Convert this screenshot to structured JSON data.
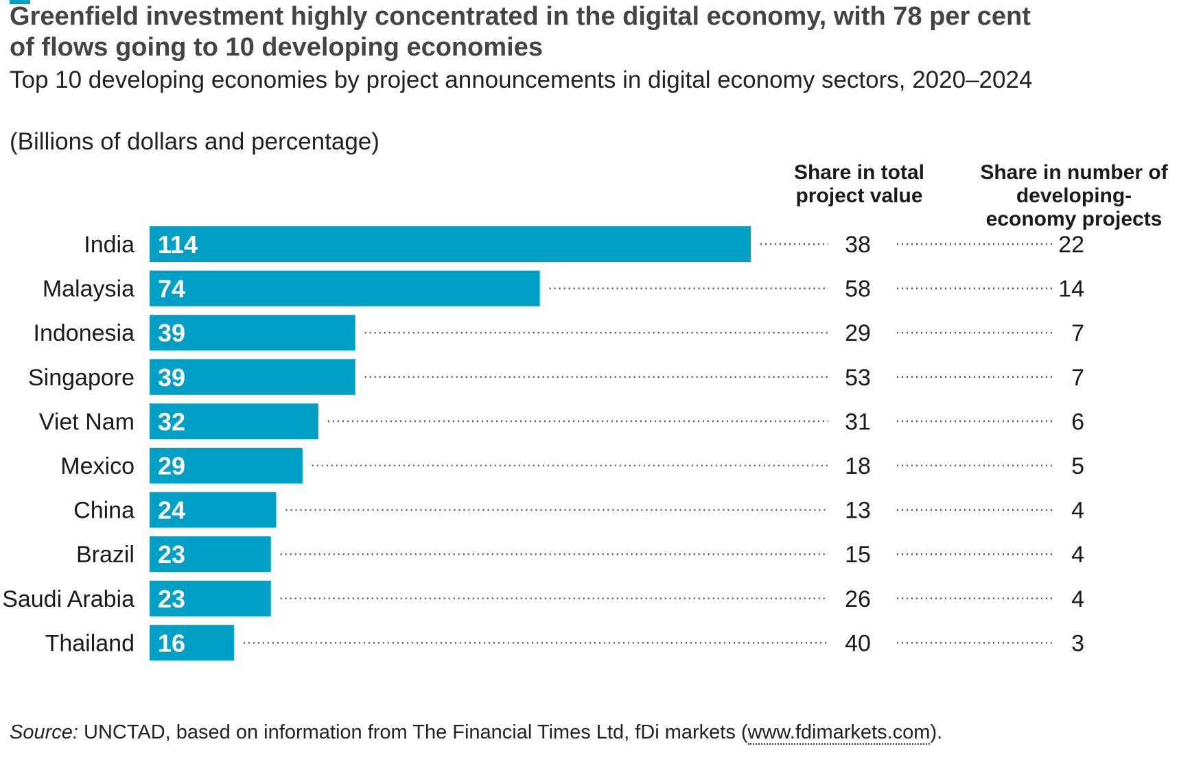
{
  "title": "Greenfield investment highly concentrated in the digital economy, with 78 per cent of flows going to 10 developing economies",
  "subtitle": "Top 10 developing economies by project announcements in digital economy sectors, 2020–2024",
  "units": "(Billions of dollars and percentage)",
  "source": {
    "label": "Source:",
    "text": " UNCTAD, based on information from The Financial Times Ltd, fDi markets (",
    "link": "www.fdimarkets.com",
    "end": ")."
  },
  "colors": {
    "bar": "#00a0c6",
    "accent": "#00a0c6",
    "bar_label": "#ffffff"
  },
  "chart_data": {
    "type": "bar",
    "orientation": "horizontal",
    "categories": [
      "India",
      "Malaysia",
      "Indonesia",
      "Singapore",
      "Viet Nam",
      "Mexico",
      "China",
      "Brazil",
      "Saudi Arabia",
      "Thailand"
    ],
    "values": [
      114,
      74,
      39,
      39,
      32,
      29,
      24,
      23,
      23,
      16
    ],
    "xlim": [
      0,
      114
    ],
    "grid": false,
    "legend": "none",
    "columns": [
      {
        "header": "Share in total project value",
        "values": [
          38,
          58,
          29,
          53,
          31,
          18,
          13,
          15,
          26,
          40
        ]
      },
      {
        "header": "Share in number of developing-economy projects",
        "values": [
          22,
          14,
          7,
          7,
          6,
          5,
          4,
          4,
          4,
          3
        ]
      }
    ]
  }
}
